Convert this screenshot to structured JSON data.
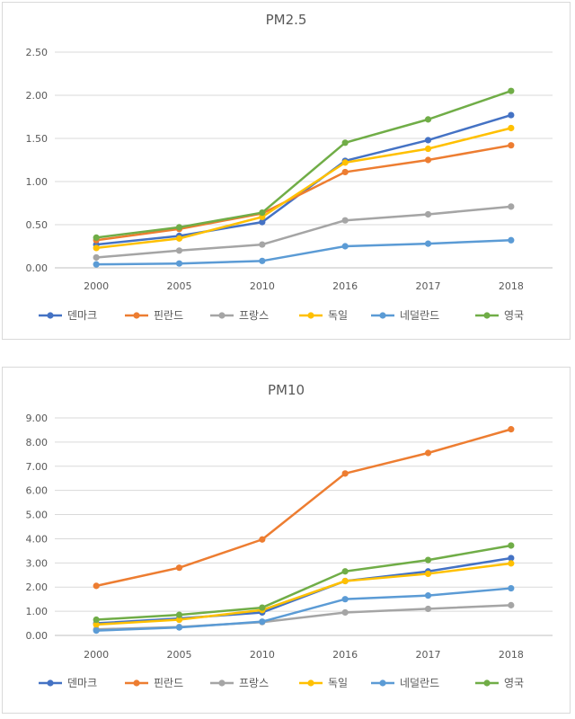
{
  "chart_data": [
    {
      "type": "line",
      "title": "PM2.5",
      "categories": [
        "2000",
        "2005",
        "2010",
        "2016",
        "2017",
        "2018"
      ],
      "yticks": [
        "0.00",
        "0.50",
        "1.00",
        "1.50",
        "2.00",
        "2.50"
      ],
      "ylim": [
        0,
        2.5
      ],
      "grid": true,
      "legend": "bottom",
      "series": [
        {
          "name": "덴마크",
          "color": "#4472c4",
          "values": [
            0.27,
            0.37,
            0.53,
            1.24,
            1.48,
            1.77
          ]
        },
        {
          "name": "핀란드",
          "color": "#ed7d31",
          "values": [
            0.32,
            0.45,
            0.63,
            1.11,
            1.25,
            1.42
          ]
        },
        {
          "name": "프랑스",
          "color": "#a5a5a5",
          "values": [
            0.12,
            0.2,
            0.27,
            0.55,
            0.62,
            0.71
          ]
        },
        {
          "name": "독일",
          "color": "#ffc000",
          "values": [
            0.23,
            0.34,
            0.59,
            1.22,
            1.38,
            1.62
          ]
        },
        {
          "name": "네덜란드",
          "color": "#5b9bd5",
          "values": [
            0.04,
            0.05,
            0.08,
            0.25,
            0.28,
            0.32
          ]
        },
        {
          "name": "영국",
          "color": "#70ad47",
          "values": [
            0.35,
            0.47,
            0.64,
            1.45,
            1.72,
            2.05
          ]
        }
      ]
    },
    {
      "type": "line",
      "title": "PM10",
      "categories": [
        "2000",
        "2005",
        "2010",
        "2016",
        "2017",
        "2018"
      ],
      "yticks": [
        "0.00",
        "1.00",
        "2.00",
        "3.00",
        "4.00",
        "5.00",
        "6.00",
        "7.00",
        "8.00",
        "9.00"
      ],
      "ylim": [
        0,
        9
      ],
      "grid": true,
      "legend": "bottom",
      "series": [
        {
          "name": "덴마크",
          "color": "#4472c4",
          "values": [
            0.5,
            0.7,
            0.95,
            2.25,
            2.65,
            3.2
          ]
        },
        {
          "name": "핀란드",
          "color": "#ed7d31",
          "values": [
            2.05,
            2.8,
            3.97,
            6.7,
            7.55,
            8.53
          ]
        },
        {
          "name": "프랑스",
          "color": "#a5a5a5",
          "values": [
            0.25,
            0.35,
            0.55,
            0.95,
            1.1,
            1.25
          ]
        },
        {
          "name": "독일",
          "color": "#ffc000",
          "values": [
            0.45,
            0.65,
            1.05,
            2.25,
            2.55,
            2.98
          ]
        },
        {
          "name": "네덜란드",
          "color": "#5b9bd5",
          "values": [
            0.2,
            0.33,
            0.57,
            1.5,
            1.65,
            1.95
          ]
        },
        {
          "name": "영국",
          "color": "#70ad47",
          "values": [
            0.65,
            0.85,
            1.15,
            2.65,
            3.12,
            3.72
          ]
        }
      ]
    }
  ]
}
